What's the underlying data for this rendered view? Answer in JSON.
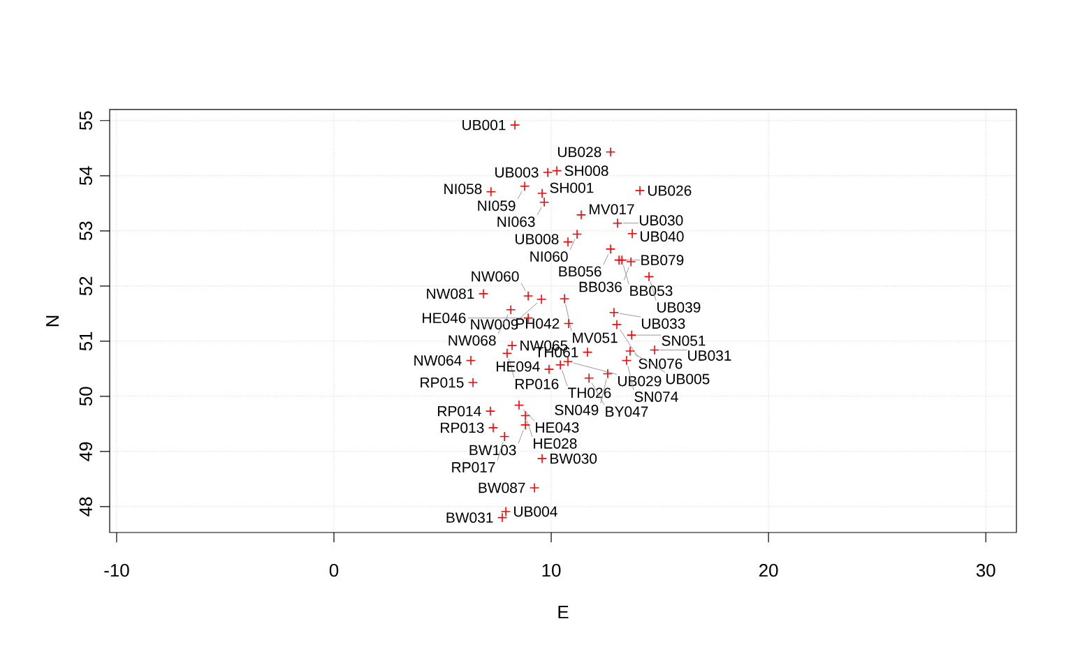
{
  "chart_data": {
    "type": "scatter",
    "xlabel": "E",
    "ylabel": "N",
    "xlim": [
      -10.32,
      31.41
    ],
    "ylim": [
      47.53,
      55.2
    ],
    "xticks": [
      -10,
      0,
      10,
      20,
      30
    ],
    "yticks": [
      48,
      49,
      50,
      51,
      52,
      53,
      54,
      55
    ],
    "grid": true,
    "marker": "cross",
    "series": [
      {
        "color": "#ff0000",
        "x": [
          8.33,
          12.73,
          9.84,
          10.26,
          8.78,
          7.23,
          9.58,
          9.68,
          14.08,
          11.38,
          13.05,
          13.73,
          11.19,
          10.77,
          12.73,
          13.12,
          13.25,
          13.67,
          14.5,
          6.88,
          8.94,
          9.55,
          10.61,
          8.14,
          8.94,
          10.8,
          12.89,
          13.02,
          13.7,
          8.2,
          7.97,
          6.3,
          6.4,
          9.9,
          10.42,
          10.77,
          11.67,
          13.63,
          14.76,
          13.47,
          12.6,
          11.74,
          8.52,
          7.2,
          8.81,
          7.33,
          8.81,
          7.85,
          9.58,
          9.23,
          7.91,
          7.75
        ],
        "values": [
          54.92,
          54.43,
          54.06,
          54.09,
          53.81,
          53.71,
          53.68,
          53.52,
          53.73,
          53.29,
          53.14,
          52.95,
          52.94,
          52.8,
          52.67,
          52.47,
          52.47,
          52.44,
          52.17,
          51.86,
          51.82,
          51.76,
          51.77,
          51.57,
          51.42,
          51.32,
          51.52,
          51.3,
          51.11,
          50.92,
          50.78,
          50.65,
          50.25,
          50.49,
          50.57,
          50.63,
          50.8,
          50.82,
          50.84,
          50.65,
          50.41,
          50.33,
          49.84,
          49.73,
          49.65,
          49.43,
          49.48,
          49.27,
          48.87,
          48.34,
          47.91,
          47.8
        ]
      }
    ],
    "annotations": [
      {
        "text": "UB001",
        "x": 8.33,
        "y": 54.92
      },
      {
        "text": "UB028",
        "x": 12.73,
        "y": 54.43
      },
      {
        "text": "UB003",
        "x": 9.84,
        "y": 54.06
      },
      {
        "text": "SH008",
        "x": 10.26,
        "y": 54.09
      },
      {
        "text": "NI059",
        "x": 8.78,
        "y": 53.81
      },
      {
        "text": "NI058",
        "x": 7.23,
        "y": 53.71
      },
      {
        "text": "SH001",
        "x": 9.58,
        "y": 53.68
      },
      {
        "text": "NI063",
        "x": 9.68,
        "y": 53.52
      },
      {
        "text": "UB026",
        "x": 14.08,
        "y": 53.73
      },
      {
        "text": "MV017",
        "x": 11.38,
        "y": 53.29
      },
      {
        "text": "UB030",
        "x": 13.05,
        "y": 53.14
      },
      {
        "text": "UB040",
        "x": 13.73,
        "y": 52.95
      },
      {
        "text": "NI060",
        "x": 11.19,
        "y": 52.94
      },
      {
        "text": "UB008",
        "x": 10.77,
        "y": 52.8
      },
      {
        "text": "BB056",
        "x": 12.73,
        "y": 52.67
      },
      {
        "text": "BB079",
        "x": 13.12,
        "y": 52.47
      },
      {
        "text": "BB053",
        "x": 13.25,
        "y": 52.47
      },
      {
        "text": "BB036",
        "x": 13.67,
        "y": 52.44
      },
      {
        "text": "UB039",
        "x": 14.5,
        "y": 52.17
      },
      {
        "text": "NW081",
        "x": 6.88,
        "y": 51.86
      },
      {
        "text": "NW060",
        "x": 8.94,
        "y": 51.82
      },
      {
        "text": "NW009",
        "x": 9.55,
        "y": 51.76
      },
      {
        "text": "MV051",
        "x": 10.61,
        "y": 51.77
      },
      {
        "text": "NW068",
        "x": 8.14,
        "y": 51.57
      },
      {
        "text": "HE046",
        "x": 8.94,
        "y": 51.42
      },
      {
        "text": "PH042",
        "x": 10.8,
        "y": 51.32
      },
      {
        "text": "UB033",
        "x": 12.89,
        "y": 51.52
      },
      {
        "text": "SN076",
        "x": 13.02,
        "y": 51.3
      },
      {
        "text": "SN051",
        "x": 13.7,
        "y": 51.11
      },
      {
        "text": "NW065",
        "x": 8.2,
        "y": 50.92
      },
      {
        "text": "RP016",
        "x": 7.97,
        "y": 50.78
      },
      {
        "text": "NW064",
        "x": 6.3,
        "y": 50.65
      },
      {
        "text": "RP015",
        "x": 6.4,
        "y": 50.25
      },
      {
        "text": "HE094",
        "x": 9.9,
        "y": 50.49
      },
      {
        "text": "TH026",
        "x": 10.42,
        "y": 50.57
      },
      {
        "text": "UB029",
        "x": 10.77,
        "y": 50.63
      },
      {
        "text": "TH061",
        "x": 11.67,
        "y": 50.8
      },
      {
        "text": "UB005",
        "x": 13.63,
        "y": 50.82
      },
      {
        "text": "UB031",
        "x": 14.76,
        "y": 50.84
      },
      {
        "text": "SN074",
        "x": 13.47,
        "y": 50.65
      },
      {
        "text": "SN049",
        "x": 12.6,
        "y": 50.41
      },
      {
        "text": "BY047",
        "x": 11.74,
        "y": 50.33
      },
      {
        "text": "HE043",
        "x": 8.52,
        "y": 49.84
      },
      {
        "text": "RP014",
        "x": 7.2,
        "y": 49.73
      },
      {
        "text": "HE028",
        "x": 8.81,
        "y": 49.65
      },
      {
        "text": "RP013",
        "x": 7.33,
        "y": 49.43
      },
      {
        "text": "BW103",
        "x": 8.81,
        "y": 49.48
      },
      {
        "text": "RP017",
        "x": 7.85,
        "y": 49.27
      },
      {
        "text": "BW030",
        "x": 9.58,
        "y": 48.87
      },
      {
        "text": "BW087",
        "x": 9.23,
        "y": 48.34
      },
      {
        "text": "UB004",
        "x": 7.91,
        "y": 47.91
      },
      {
        "text": "BW031",
        "x": 7.75,
        "y": 47.8
      }
    ]
  }
}
